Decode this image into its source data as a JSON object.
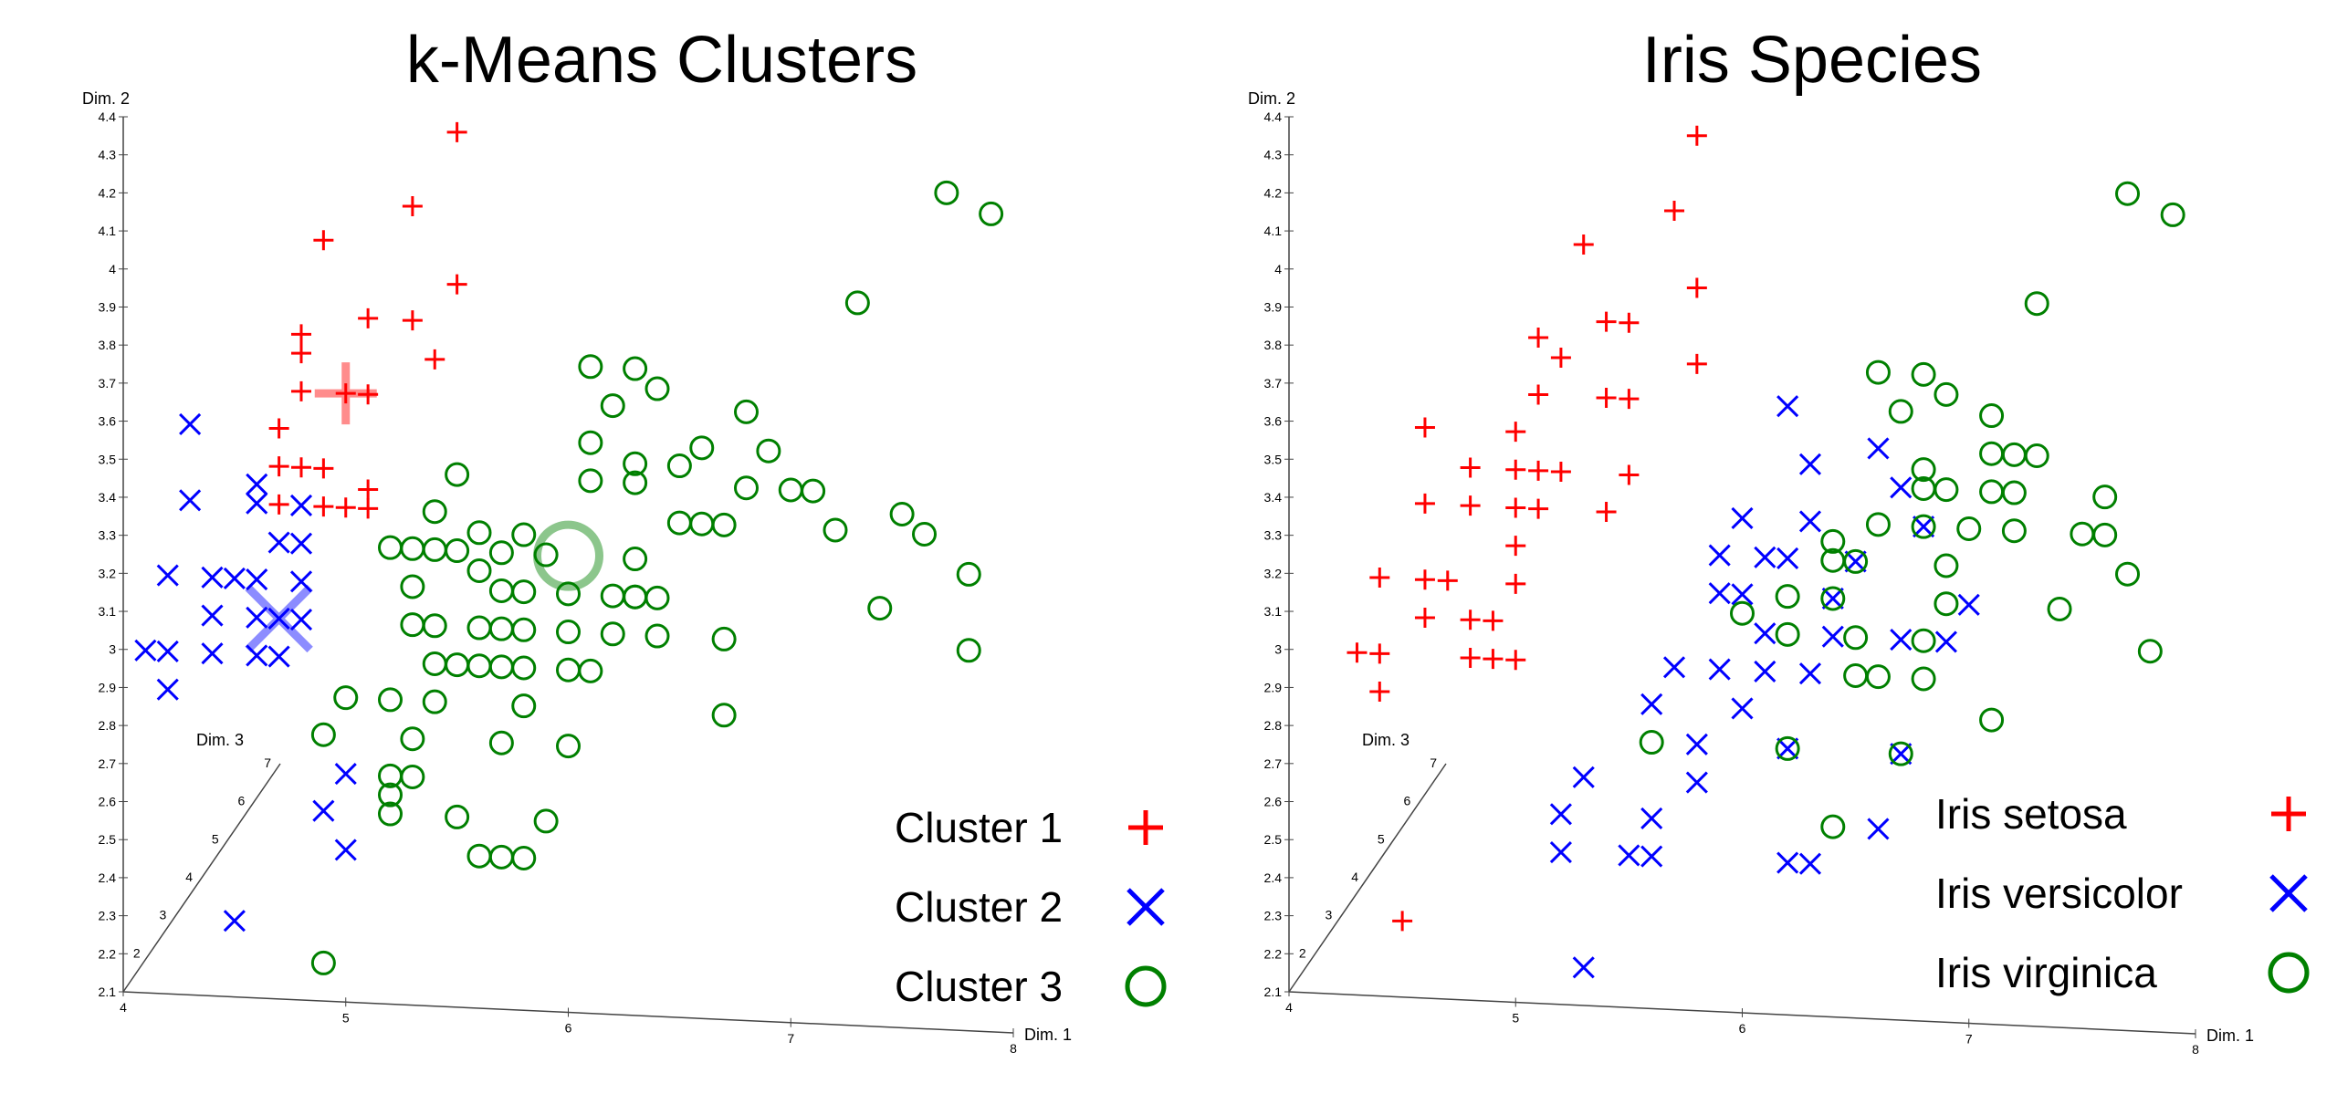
{
  "chart_data": [
    {
      "type": "scatter",
      "title": "k-Means Clusters",
      "xlabel": "Dim. 1",
      "ylabel": "Dim. 2",
      "zlabel": "Dim. 3",
      "xlim": [
        4,
        8
      ],
      "ylim": [
        2.1,
        4.4
      ],
      "zlim": [
        1,
        7
      ],
      "x_ticks": [
        "4",
        "5",
        "6",
        "7",
        "8"
      ],
      "y_ticks": [
        "2.1",
        "2.2",
        "2.3",
        "2.4",
        "2.5",
        "2.6",
        "2.7",
        "2.8",
        "2.9",
        "3",
        "3.1",
        "3.2",
        "3.3",
        "3.4",
        "3.5",
        "3.6",
        "3.7",
        "3.8",
        "3.9",
        "4",
        "4.1",
        "4.2",
        "4.3",
        "4.4"
      ],
      "z_ticks": [
        "2",
        "3",
        "4",
        "5",
        "6",
        "7"
      ],
      "legend_position": "bottom-right",
      "series": [
        {
          "name": "Cluster 1",
          "marker": "plus",
          "color": "#ff0000",
          "points": [
            [
              5.5,
              4.4
            ],
            [
              5.3,
              4.2
            ],
            [
              4.9,
              4.1
            ],
            [
              5.5,
              4.0
            ],
            [
              5.1,
              3.9
            ],
            [
              5.3,
              3.9
            ],
            [
              4.8,
              3.8
            ],
            [
              4.8,
              3.85
            ],
            [
              5.4,
              3.8
            ],
            [
              4.8,
              3.7
            ],
            [
              5.0,
              3.7
            ],
            [
              5.1,
              3.7
            ],
            [
              4.7,
              3.6
            ],
            [
              4.7,
              3.5
            ],
            [
              4.8,
              3.5
            ],
            [
              4.9,
              3.5
            ],
            [
              4.7,
              3.4
            ],
            [
              4.9,
              3.4
            ],
            [
              5.0,
              3.4
            ],
            [
              5.1,
              3.4
            ],
            [
              5.1,
              3.45
            ]
          ]
        },
        {
          "name": "Cluster 2",
          "marker": "x",
          "color": "#0000ff",
          "points": [
            [
              4.3,
              3.6
            ],
            [
              4.3,
              3.4
            ],
            [
              4.6,
              3.4
            ],
            [
              4.6,
              3.45
            ],
            [
              4.8,
              3.4
            ],
            [
              4.7,
              3.3
            ],
            [
              4.8,
              3.3
            ],
            [
              4.2,
              3.2
            ],
            [
              4.4,
              3.2
            ],
            [
              4.5,
              3.2
            ],
            [
              4.6,
              3.2
            ],
            [
              4.8,
              3.2
            ],
            [
              4.4,
              3.1
            ],
            [
              4.7,
              3.1
            ],
            [
              4.8,
              3.1
            ],
            [
              4.6,
              3.1
            ],
            [
              4.1,
              3.0
            ],
            [
              4.2,
              3.0
            ],
            [
              4.6,
              3.0
            ],
            [
              4.7,
              3.0
            ],
            [
              4.2,
              2.9
            ],
            [
              4.4,
              3.0
            ],
            [
              5.0,
              2.7
            ],
            [
              4.9,
              2.6
            ],
            [
              5.0,
              2.5
            ],
            [
              4.5,
              2.3
            ]
          ]
        },
        {
          "name": "Cluster 3",
          "marker": "circle",
          "color": "#008000",
          "points": [
            [
              7.7,
              4.3
            ],
            [
              7.9,
              4.25
            ],
            [
              7.3,
              4.0
            ],
            [
              6.1,
              3.8
            ],
            [
              6.3,
              3.8
            ],
            [
              6.4,
              3.75
            ],
            [
              6.2,
              3.7
            ],
            [
              6.8,
              3.7
            ],
            [
              6.6,
              3.6
            ],
            [
              6.1,
              3.6
            ],
            [
              6.9,
              3.6
            ],
            [
              6.1,
              3.5
            ],
            [
              5.5,
              3.5
            ],
            [
              6.5,
              3.55
            ],
            [
              6.3,
              3.5
            ],
            [
              6.3,
              3.55
            ],
            [
              6.8,
              3.5
            ],
            [
              7.0,
              3.5
            ],
            [
              7.1,
              3.5
            ],
            [
              7.5,
              3.45
            ],
            [
              6.5,
              3.4
            ],
            [
              6.7,
              3.4
            ],
            [
              7.2,
              3.4
            ],
            [
              7.6,
              3.4
            ],
            [
              6.6,
              3.4
            ],
            [
              5.4,
              3.4
            ],
            [
              5.6,
              3.35
            ],
            [
              5.8,
              3.35
            ],
            [
              5.7,
              3.3
            ],
            [
              6.3,
              3.3
            ],
            [
              5.2,
              3.3
            ],
            [
              5.4,
              3.3
            ],
            [
              5.3,
              3.3
            ],
            [
              5.6,
              3.25
            ],
            [
              5.5,
              3.3
            ],
            [
              5.9,
              3.3
            ],
            [
              7.8,
              3.3
            ],
            [
              6.3,
              3.2
            ],
            [
              6.4,
              3.2
            ],
            [
              7.4,
              3.2
            ],
            [
              5.7,
              3.2
            ],
            [
              5.8,
              3.2
            ],
            [
              6.0,
              3.2
            ],
            [
              6.2,
              3.2
            ],
            [
              6.3,
              3.2
            ],
            [
              5.3,
              3.2
            ],
            [
              5.3,
              3.1
            ],
            [
              6.0,
              3.1
            ],
            [
              6.2,
              3.1
            ],
            [
              6.4,
              3.1
            ],
            [
              6.7,
              3.1
            ],
            [
              5.4,
              3.1
            ],
            [
              5.6,
              3.1
            ],
            [
              5.8,
              3.1
            ],
            [
              5.7,
              3.1
            ],
            [
              7.8,
              3.1
            ],
            [
              6.0,
              3.0
            ],
            [
              6.1,
              3.0
            ],
            [
              5.4,
              3.0
            ],
            [
              5.5,
              3.0
            ],
            [
              5.7,
              3.0
            ],
            [
              5.8,
              3.0
            ],
            [
              5.6,
              3.0
            ],
            [
              5.4,
              2.9
            ],
            [
              5.2,
              2.9
            ],
            [
              6.7,
              2.9
            ],
            [
              4.9,
              2.8
            ],
            [
              5.3,
              2.8
            ],
            [
              5.8,
              2.9
            ],
            [
              6.0,
              2.8
            ],
            [
              5.7,
              2.8
            ],
            [
              5.2,
              2.7
            ],
            [
              5.3,
              2.7
            ],
            [
              5.5,
              2.6
            ],
            [
              5.2,
              2.6
            ],
            [
              5.2,
              2.65
            ],
            [
              5.7,
              2.5
            ],
            [
              5.9,
              2.6
            ],
            [
              5.6,
              2.5
            ],
            [
              5.8,
              2.5
            ],
            [
              4.9,
              2.2
            ],
            [
              5.0,
              2.9
            ]
          ]
        }
      ],
      "centroids": [
        {
          "series": "Cluster 1",
          "x": 5.0,
          "y": 3.7
        },
        {
          "series": "Cluster 2",
          "x": 4.7,
          "y": 3.1
        },
        {
          "series": "Cluster 3",
          "x": 6.0,
          "y": 3.3
        }
      ]
    },
    {
      "type": "scatter",
      "title": "Iris Species",
      "xlabel": "Dim. 1",
      "ylabel": "Dim. 2",
      "zlabel": "Dim. 3",
      "xlim": [
        4,
        8
      ],
      "ylim": [
        2.1,
        4.4
      ],
      "zlim": [
        1,
        7
      ],
      "x_ticks": [
        "4",
        "5",
        "6",
        "7",
        "8"
      ],
      "y_ticks": [
        "2.1",
        "2.2",
        "2.3",
        "2.4",
        "2.5",
        "2.6",
        "2.7",
        "2.8",
        "2.9",
        "3",
        "3.1",
        "3.2",
        "3.3",
        "3.4",
        "3.5",
        "3.6",
        "3.7",
        "3.8",
        "3.9",
        "4",
        "4.1",
        "4.2",
        "4.3",
        "4.4"
      ],
      "z_ticks": [
        "2",
        "3",
        "4",
        "5",
        "6",
        "7"
      ],
      "legend_position": "bottom-right",
      "series": [
        {
          "name": "Iris setosa",
          "marker": "plus",
          "color": "#ff0000",
          "points": [
            [
              5.8,
              4.4
            ],
            [
              5.7,
              4.2
            ],
            [
              5.3,
              4.1
            ],
            [
              5.8,
              4.0
            ],
            [
              5.4,
              3.9
            ],
            [
              5.5,
              3.9
            ],
            [
              5.1,
              3.85
            ],
            [
              5.2,
              3.8
            ],
            [
              5.8,
              3.8
            ],
            [
              5.1,
              3.7
            ],
            [
              5.4,
              3.7
            ],
            [
              5.5,
              3.7
            ],
            [
              5.0,
              3.6
            ],
            [
              4.6,
              3.6
            ],
            [
              4.8,
              3.5
            ],
            [
              5.0,
              3.5
            ],
            [
              5.1,
              3.5
            ],
            [
              5.2,
              3.5
            ],
            [
              5.5,
              3.5
            ],
            [
              4.6,
              3.4
            ],
            [
              4.8,
              3.4
            ],
            [
              5.0,
              3.4
            ],
            [
              5.1,
              3.4
            ],
            [
              5.4,
              3.4
            ],
            [
              5.0,
              3.3
            ],
            [
              4.7,
              3.2
            ],
            [
              4.4,
              3.2
            ],
            [
              4.6,
              3.2
            ],
            [
              5.0,
              3.2
            ],
            [
              4.6,
              3.1
            ],
            [
              4.8,
              3.1
            ],
            [
              4.9,
              3.1
            ],
            [
              4.3,
              3.0
            ],
            [
              4.4,
              3.0
            ],
            [
              4.8,
              3.0
            ],
            [
              4.9,
              3.0
            ],
            [
              5.0,
              3.0
            ],
            [
              4.4,
              2.9
            ],
            [
              4.5,
              2.3
            ]
          ]
        },
        {
          "name": "Iris versicolor",
          "marker": "x",
          "color": "#0000ff",
          "points": [
            [
              6.0,
              3.4
            ],
            [
              6.3,
              3.4
            ],
            [
              6.3,
              3.55
            ],
            [
              6.7,
              3.5
            ],
            [
              6.6,
              3.6
            ],
            [
              6.7,
              3.1
            ],
            [
              6.1,
              3.3
            ],
            [
              5.9,
              3.3
            ],
            [
              6.2,
              3.3
            ],
            [
              6.9,
              3.1
            ],
            [
              7.0,
              3.2
            ],
            [
              6.5,
              3.3
            ],
            [
              6.4,
              3.2
            ],
            [
              6.4,
              3.1
            ],
            [
              6.0,
              3.2
            ],
            [
              6.1,
              3.1
            ],
            [
              5.9,
              3.2
            ],
            [
              6.3,
              3.0
            ],
            [
              6.1,
              3.0
            ],
            [
              5.7,
              3.0
            ],
            [
              6.0,
              2.9
            ],
            [
              6.2,
              2.8
            ],
            [
              5.6,
              2.9
            ],
            [
              5.8,
              2.8
            ],
            [
              5.8,
              2.7
            ],
            [
              5.6,
              2.6
            ],
            [
              5.5,
              2.5
            ],
            [
              5.2,
              2.6
            ],
            [
              5.3,
              2.7
            ],
            [
              5.2,
              2.5
            ],
            [
              5.6,
              2.5
            ],
            [
              6.2,
              2.5
            ],
            [
              6.3,
              2.5
            ],
            [
              6.6,
              2.6
            ],
            [
              5.3,
              2.2
            ],
            [
              6.8,
              3.4
            ],
            [
              6.7,
              2.8
            ],
            [
              6.2,
              3.7
            ],
            [
              5.9,
              3.0
            ]
          ]
        },
        {
          "name": "Iris virginica",
          "marker": "circle",
          "color": "#008000",
          "points": [
            [
              7.7,
              4.3
            ],
            [
              7.9,
              4.25
            ],
            [
              7.3,
              4.0
            ],
            [
              6.6,
              3.8
            ],
            [
              6.8,
              3.8
            ],
            [
              6.9,
              3.75
            ],
            [
              6.7,
              3.7
            ],
            [
              7.1,
              3.7
            ],
            [
              7.1,
              3.6
            ],
            [
              7.2,
              3.6
            ],
            [
              7.3,
              3.6
            ],
            [
              6.8,
              3.55
            ],
            [
              6.8,
              3.5
            ],
            [
              6.9,
              3.5
            ],
            [
              7.1,
              3.5
            ],
            [
              7.2,
              3.5
            ],
            [
              7.6,
              3.5
            ],
            [
              6.4,
              3.35
            ],
            [
              6.6,
              3.4
            ],
            [
              6.8,
              3.4
            ],
            [
              7.0,
              3.4
            ],
            [
              7.2,
              3.4
            ],
            [
              7.5,
              3.4
            ],
            [
              7.6,
              3.4
            ],
            [
              6.4,
              3.3
            ],
            [
              6.5,
              3.3
            ],
            [
              6.9,
              3.3
            ],
            [
              7.7,
              3.3
            ],
            [
              6.2,
              3.2
            ],
            [
              6.4,
              3.2
            ],
            [
              6.9,
              3.2
            ],
            [
              7.4,
              3.2
            ],
            [
              6.2,
              3.1
            ],
            [
              6.5,
              3.1
            ],
            [
              6.8,
              3.1
            ],
            [
              7.8,
              3.1
            ],
            [
              6.5,
              3.0
            ],
            [
              6.6,
              3.0
            ],
            [
              6.8,
              3.0
            ],
            [
              5.6,
              2.8
            ],
            [
              6.2,
              2.8
            ],
            [
              6.7,
              2.8
            ],
            [
              7.1,
              2.9
            ],
            [
              6.4,
              2.6
            ],
            [
              6.0,
              3.15
            ]
          ]
        }
      ]
    }
  ]
}
